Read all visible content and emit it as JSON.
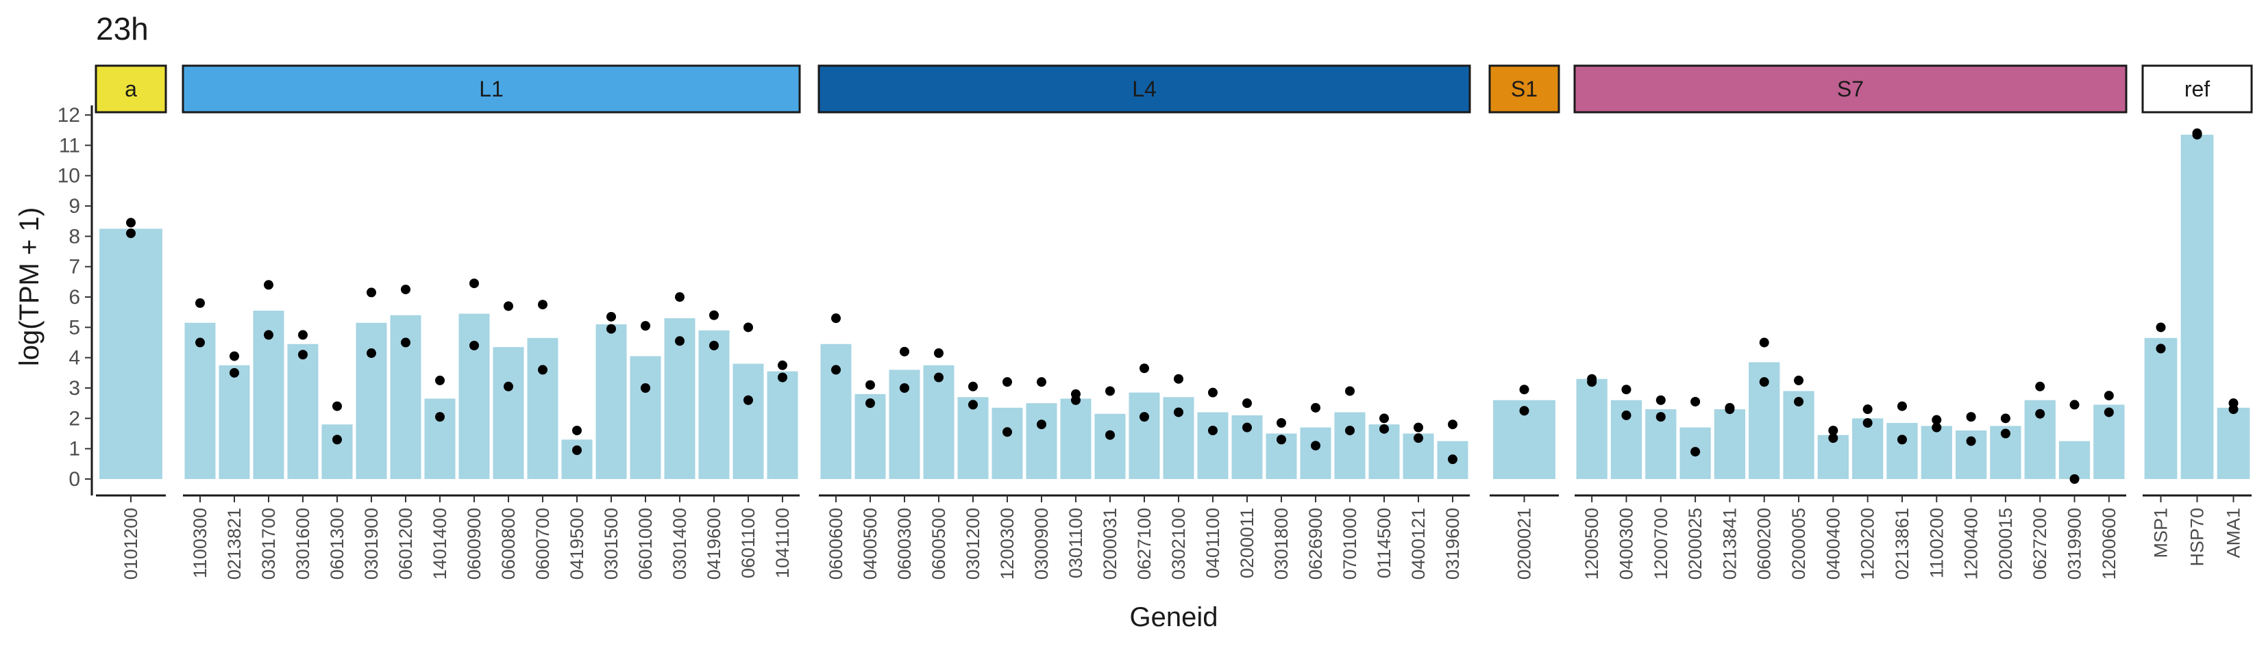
{
  "chart_data": {
    "type": "bar",
    "title": "23h",
    "xlabel": "Geneid",
    "ylabel": "log(TPM + 1)",
    "ylim": [
      0,
      12
    ],
    "yticks": [
      0,
      1,
      2,
      3,
      4,
      5,
      6,
      7,
      8,
      9,
      10,
      11,
      12
    ],
    "grid": false,
    "bar_color": "#a6d5e3",
    "point_color": "#000000",
    "facets": [
      {
        "label": "a",
        "strip_color": "#ede23a",
        "label_color": "#1a1a1a",
        "categories": [
          "0101200"
        ],
        "values": [
          8.25
        ],
        "points": [
          [
            8.45,
            8.1
          ]
        ]
      },
      {
        "label": "L1",
        "strip_color": "#4aa7e4",
        "label_color": "#1a1a1a",
        "categories": [
          "1100300",
          "0213821",
          "0301700",
          "0301600",
          "0601300",
          "0301900",
          "0601200",
          "1401400",
          "0600900",
          "0600800",
          "0600700",
          "0419500",
          "0301500",
          "0601000",
          "0301400",
          "0419600",
          "0601100",
          "1041100"
        ],
        "values": [
          5.15,
          3.75,
          5.55,
          4.45,
          1.8,
          5.15,
          5.4,
          2.65,
          5.45,
          4.35,
          4.65,
          1.3,
          5.1,
          4.05,
          5.3,
          4.9,
          3.8,
          3.55
        ],
        "points": [
          [
            5.8,
            4.5
          ],
          [
            4.05,
            3.5
          ],
          [
            6.4,
            4.75
          ],
          [
            4.75,
            4.1
          ],
          [
            2.4,
            1.3
          ],
          [
            6.15,
            4.15
          ],
          [
            6.25,
            4.5
          ],
          [
            3.25,
            2.05
          ],
          [
            6.45,
            4.4
          ],
          [
            5.7,
            3.05
          ],
          [
            5.75,
            3.6
          ],
          [
            1.6,
            0.95
          ],
          [
            5.35,
            4.95
          ],
          [
            5.05,
            3.0
          ],
          [
            6.0,
            4.55
          ],
          [
            5.4,
            4.4
          ],
          [
            5.0,
            2.6
          ],
          [
            3.75,
            3.35
          ]
        ]
      },
      {
        "label": "L4",
        "strip_color": "#0f5fa5",
        "label_color": "#1a1a1a",
        "categories": [
          "0600600",
          "0400500",
          "0600300",
          "0600500",
          "0301200",
          "1200300",
          "0300900",
          "0301100",
          "0200031",
          "0627100",
          "0302100",
          "0401100",
          "0200011",
          "0301800",
          "0626900",
          "0701000",
          "0114500",
          "0400121",
          "0319600"
        ],
        "values": [
          4.45,
          2.8,
          3.6,
          3.75,
          2.7,
          2.35,
          2.5,
          2.65,
          2.15,
          2.85,
          2.7,
          2.2,
          2.1,
          1.5,
          1.7,
          2.2,
          1.8,
          1.5,
          1.25
        ],
        "points": [
          [
            5.3,
            3.6
          ],
          [
            3.1,
            2.5
          ],
          [
            4.2,
            3.0
          ],
          [
            4.15,
            3.35
          ],
          [
            3.05,
            2.45
          ],
          [
            3.2,
            1.55
          ],
          [
            3.2,
            1.8
          ],
          [
            2.8,
            2.6
          ],
          [
            2.9,
            1.45
          ],
          [
            3.65,
            2.05
          ],
          [
            3.3,
            2.2
          ],
          [
            2.85,
            1.6
          ],
          [
            2.5,
            1.7
          ],
          [
            1.85,
            1.3
          ],
          [
            2.35,
            1.1
          ],
          [
            2.9,
            1.6
          ],
          [
            2.0,
            1.65
          ],
          [
            1.7,
            1.35
          ],
          [
            1.8,
            0.65
          ]
        ]
      },
      {
        "label": "S1",
        "strip_color": "#e08a10",
        "label_color": "#1a1a1a",
        "categories": [
          "0200021"
        ],
        "values": [
          2.6
        ],
        "points": [
          [
            2.95,
            2.25
          ]
        ]
      },
      {
        "label": "S7",
        "strip_color": "#c06090",
        "label_color": "#1a1a1a",
        "categories": [
          "1200500",
          "0400300",
          "1200700",
          "0200025",
          "0213841",
          "0600200",
          "0200005",
          "0400400",
          "1200200",
          "0213861",
          "1100200",
          "1200400",
          "0200015",
          "0627200",
          "0319900",
          "1200600"
        ],
        "values": [
          3.3,
          2.6,
          2.3,
          1.7,
          2.3,
          3.85,
          2.9,
          1.45,
          2.0,
          1.85,
          1.75,
          1.6,
          1.75,
          2.6,
          1.25,
          2.45
        ],
        "points": [
          [
            3.3,
            3.2
          ],
          [
            2.95,
            2.1
          ],
          [
            2.6,
            2.05
          ],
          [
            2.55,
            0.9
          ],
          [
            2.35,
            2.3
          ],
          [
            4.5,
            3.2
          ],
          [
            3.25,
            2.55
          ],
          [
            1.6,
            1.35
          ],
          [
            2.3,
            1.85
          ],
          [
            2.4,
            1.3
          ],
          [
            1.95,
            1.7
          ],
          [
            2.05,
            1.25
          ],
          [
            2.0,
            1.5
          ],
          [
            3.05,
            2.15
          ],
          [
            2.45,
            0.0
          ],
          [
            2.75,
            2.2
          ]
        ]
      },
      {
        "label": "ref",
        "strip_color": "#ffffff",
        "label_color": "#1a1a1a",
        "categories": [
          "MSP1",
          "HSP70",
          "AMA1"
        ],
        "values": [
          4.65,
          11.35,
          2.35
        ],
        "points": [
          [
            5.0,
            4.3
          ],
          [
            11.4,
            11.35
          ],
          [
            2.5,
            2.3
          ]
        ]
      }
    ]
  }
}
